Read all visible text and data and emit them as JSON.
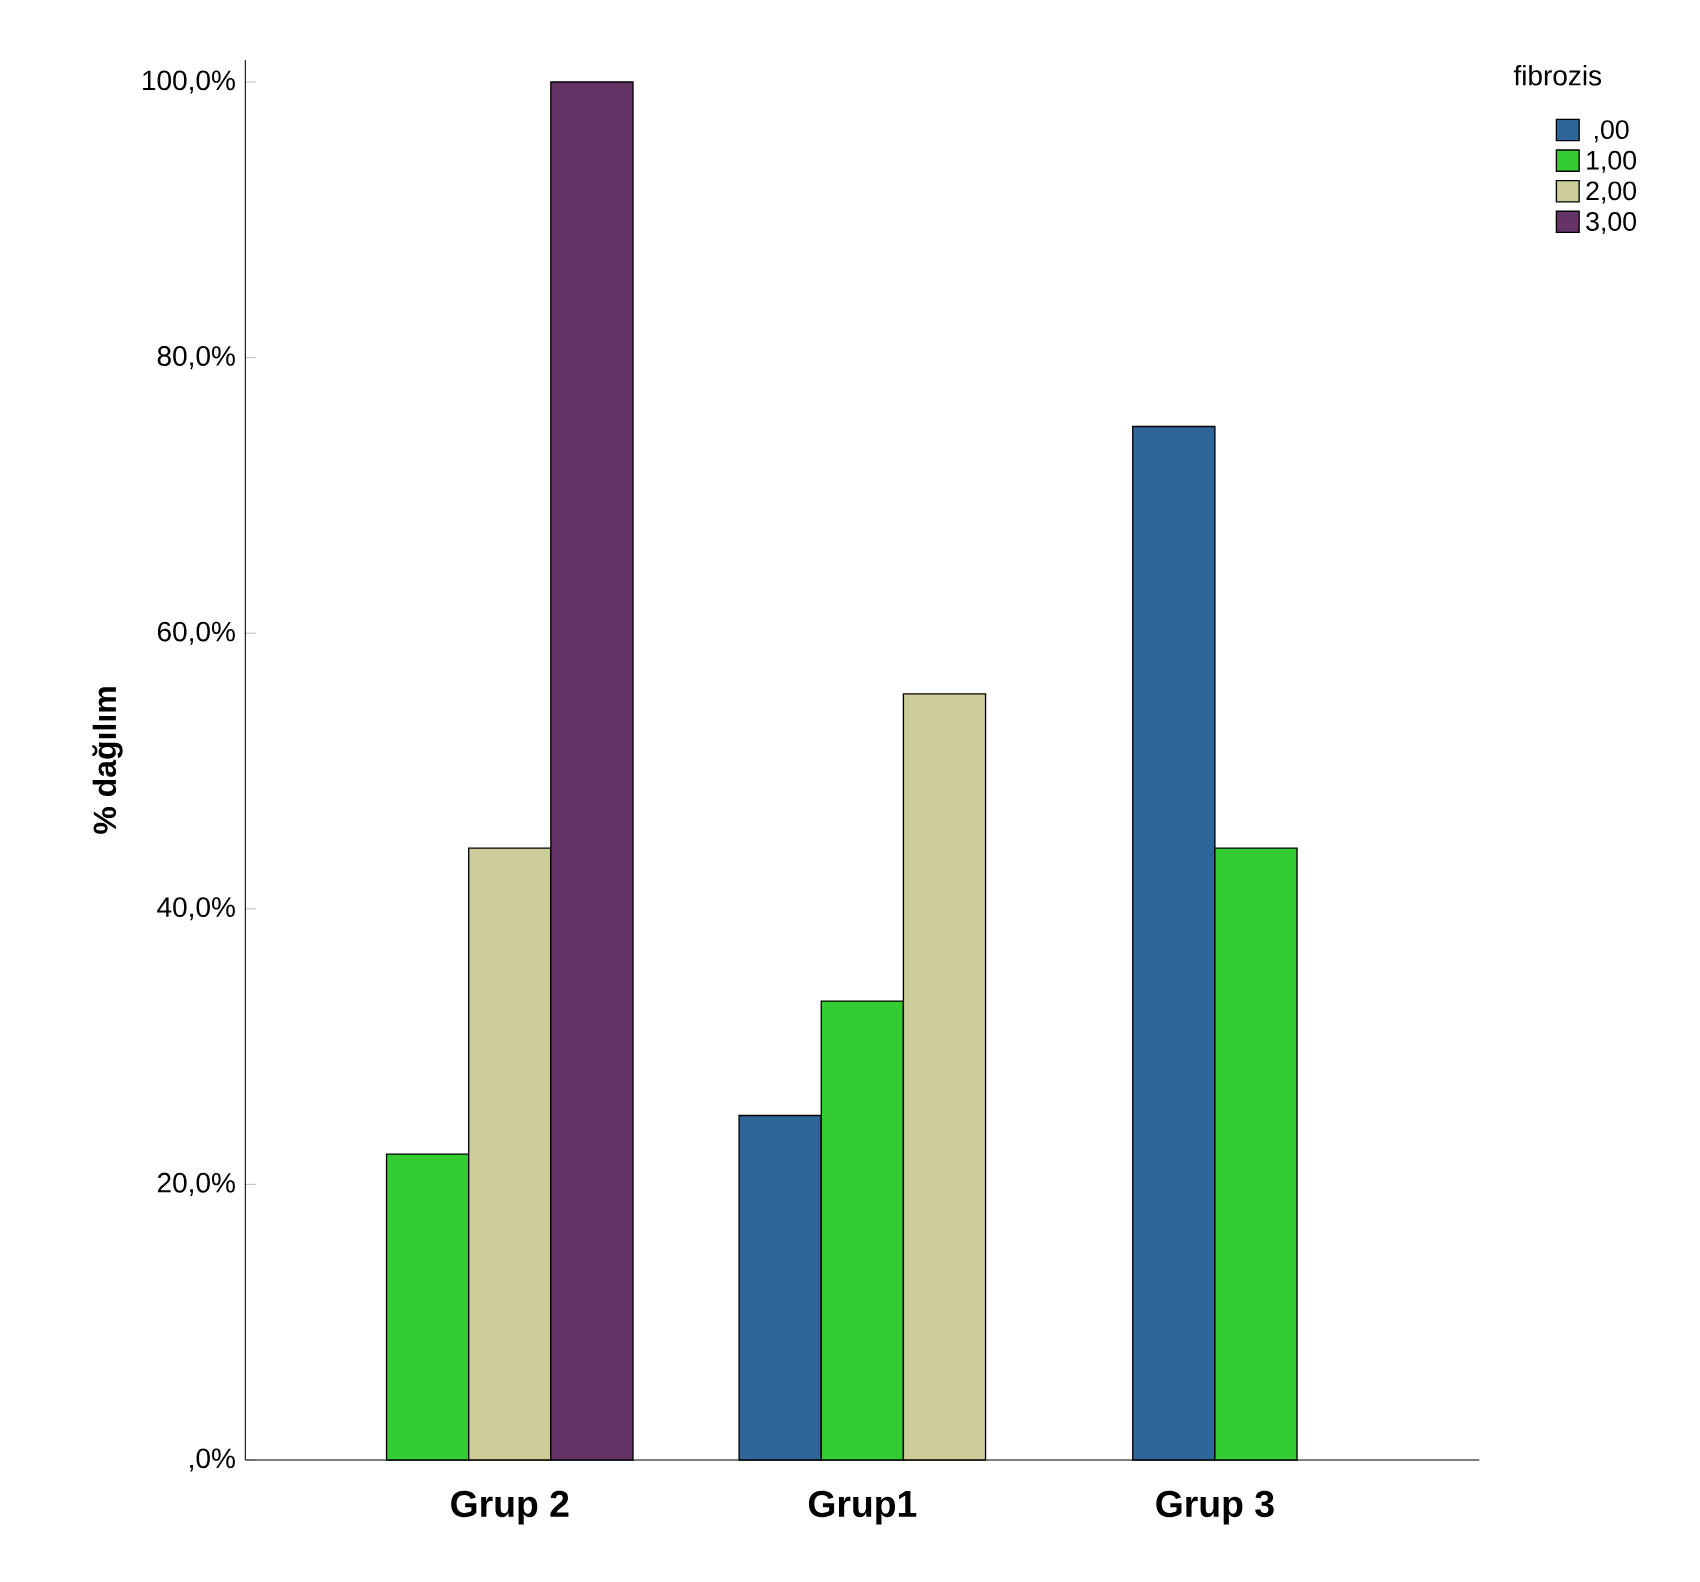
{
  "chart_data": {
    "type": "bar",
    "ylabel": "% dağılım",
    "legend_title": "fibrozis",
    "categories": [
      "Grup 2",
      "Grup1",
      "Grup 3"
    ],
    "series": [
      {
        "name": ",00",
        "color": "#2f6699",
        "values": [
          null,
          25.0,
          75.0
        ]
      },
      {
        "name": "1,00",
        "color": "#33cc33",
        "values": [
          22.2,
          33.3,
          44.4
        ]
      },
      {
        "name": "2,00",
        "color": "#cccc99",
        "values": [
          44.4,
          55.6,
          null
        ]
      },
      {
        "name": "3,00",
        "color": "#663366",
        "values": [
          100.0,
          null,
          null
        ]
      }
    ],
    "ylim": [
      0,
      101.6
    ],
    "yticks": [
      {
        "value": 0,
        "label": ",0%"
      },
      {
        "value": 20,
        "label": "20,0%"
      },
      {
        "value": 40,
        "label": "40,0%"
      },
      {
        "value": 60,
        "label": "60,0%"
      },
      {
        "value": 80,
        "label": "80,0%"
      },
      {
        "value": 100,
        "label": "100,0%"
      }
    ],
    "grid": false,
    "legend": "top right"
  }
}
